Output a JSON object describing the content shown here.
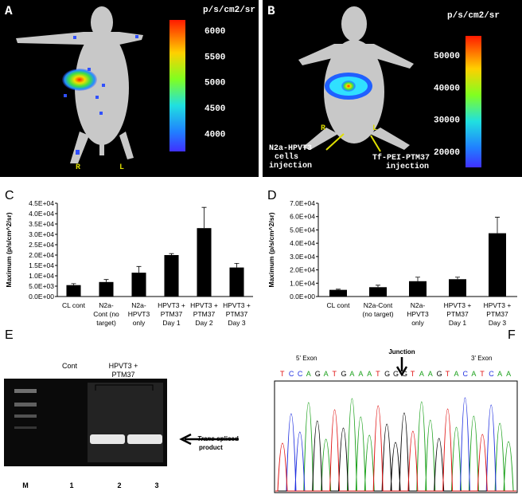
{
  "panels": {
    "A": {
      "label": "A",
      "units": "p/s/cm2/sr",
      "scale_ticks": [
        6000,
        5500,
        5000,
        4500,
        4000
      ],
      "scale_lim": [
        3650,
        6200
      ],
      "right": "R",
      "left": "L"
    },
    "B": {
      "label": "B",
      "units": "p/s/cm2/sr",
      "scale_ticks": [
        50000,
        40000,
        30000,
        20000
      ],
      "scale_lim": [
        15000,
        56000
      ],
      "right": "R",
      "left": "L",
      "note1": [
        "N2a-HPVT3",
        "cells",
        "injection"
      ],
      "note2": [
        "Tf-PEI-PTM37",
        "injection"
      ]
    },
    "E": {
      "label": "E",
      "cont": "Cont",
      "group": [
        "HPVT3 +",
        "PTM37"
      ],
      "product_italic": "Trans",
      "product": [
        "-spliced",
        "product"
      ],
      "lanes": [
        "M",
        "1",
        "2",
        "3"
      ]
    },
    "F": {
      "label": "F",
      "exon5": "5' Exon",
      "junction": "Junction",
      "exon3": "3' Exon",
      "sequence": "TCCAGATGAAATGGGTAAGTACATCAA"
    }
  },
  "chart_data": [
    {
      "type": "bar",
      "label": "C",
      "ylabel": "Maximum (p/s/cm^2/sr)",
      "color": "#000000",
      "categories": [
        [
          "CL cont"
        ],
        [
          "N2a-",
          "Cont (no",
          "target)"
        ],
        [
          "N2a-",
          "HPVT3",
          "only"
        ],
        [
          "HPVT3 +",
          "PTM37",
          "Day 1"
        ],
        [
          "HPVT3 +",
          "PTM37",
          "Day 2"
        ],
        [
          "HPVT3 +",
          "PTM37",
          "Day 3"
        ]
      ],
      "values": [
        5500,
        7000,
        11500,
        20000,
        33000,
        14000
      ],
      "errors": [
        700,
        1200,
        3000,
        700,
        10000,
        2000
      ],
      "ylim": [
        0,
        45000
      ],
      "yticks": [
        {
          "value": 0,
          "label": "0.0E+00"
        },
        {
          "value": 5000,
          "label": "5.0E+03"
        },
        {
          "value": 10000,
          "label": "1.0E+04"
        },
        {
          "value": 15000,
          "label": "1.5E+04"
        },
        {
          "value": 20000,
          "label": "2.0E+04"
        },
        {
          "value": 25000,
          "label": "2.5E+04"
        },
        {
          "value": 30000,
          "label": "3.0E+04"
        },
        {
          "value": 35000,
          "label": "3.5E+04"
        },
        {
          "value": 40000,
          "label": "4.0E+04"
        },
        {
          "value": 45000,
          "label": "4.5E+04"
        }
      ]
    },
    {
      "type": "bar",
      "label": "D",
      "ylabel": "Maximum (p/s/cm^2/sr)",
      "color": "#000000",
      "categories": [
        [
          "CL cont"
        ],
        [
          "N2a-Cont",
          "(no target)"
        ],
        [
          "N2a-",
          "HPVT3",
          "only"
        ],
        [
          "HPVT3 +",
          "PTM37",
          "Day 1"
        ],
        [
          "HPVT3 +",
          "PTM37",
          "Day 3"
        ]
      ],
      "values": [
        5000,
        7000,
        11500,
        13000,
        47500
      ],
      "errors": [
        500,
        1500,
        3000,
        1500,
        12000
      ],
      "ylim": [
        0,
        70000
      ],
      "yticks": [
        {
          "value": 0,
          "label": "0.0E+00"
        },
        {
          "value": 10000,
          "label": "1.0E+04"
        },
        {
          "value": 20000,
          "label": "2.0E+04"
        },
        {
          "value": 30000,
          "label": "3.0E+04"
        },
        {
          "value": 40000,
          "label": "4.0E+04"
        },
        {
          "value": 50000,
          "label": "5.0E+04"
        },
        {
          "value": 60000,
          "label": "6.0E+04"
        },
        {
          "value": 70000,
          "label": "7.0E+04"
        }
      ]
    }
  ]
}
